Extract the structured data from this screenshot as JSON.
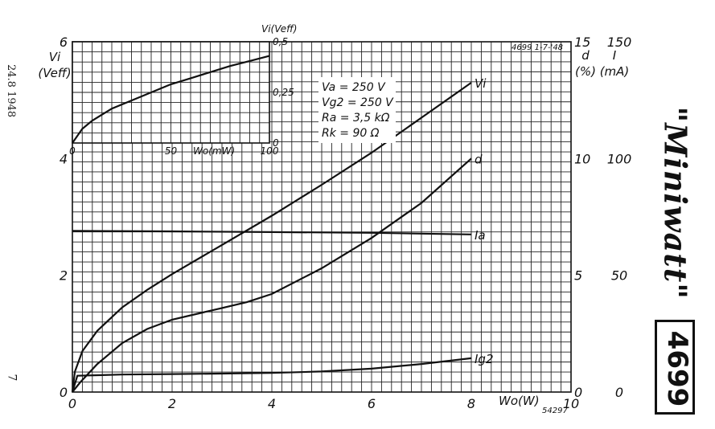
{
  "side_date": "24.8 1948",
  "page_number": "7",
  "brand": "\"Miniwatt\"",
  "tube_number": "4699",
  "sheet_ref": "4699  1-7-'48",
  "drawing_number": "54297",
  "conditions": [
    "Va  = 250 V",
    "Vg2 = 250 V",
    "Ra  = 3,5 kΩ",
    "Rk  = 90 Ω"
  ],
  "chart_data": [
    {
      "type": "line",
      "xlabel": "Wo(W)",
      "xlim": [
        0,
        10
      ],
      "x_ticks": [
        "0",
        "2",
        "4",
        "6",
        "8",
        "10"
      ],
      "left_axis": {
        "label_top": "Vi",
        "label_bottom": "(Veff)",
        "ylim": [
          0,
          6
        ],
        "ticks": [
          "0",
          "2",
          "4",
          "6"
        ]
      },
      "mid_axis": {
        "label_top": "d",
        "label_bottom": "(%)",
        "ylim": [
          0,
          15
        ],
        "ticks": [
          "0",
          "5",
          "10",
          "15"
        ]
      },
      "right_axis": {
        "label_top": "I",
        "label_bottom": "(mA)",
        "ylim": [
          0,
          150
        ],
        "ticks": [
          "0",
          "50",
          "100",
          "150"
        ]
      },
      "series": [
        {
          "name": "Vi",
          "axis": "left",
          "x": [
            0,
            0.05,
            0.2,
            0.5,
            1,
            1.5,
            2,
            3,
            4,
            5,
            6,
            7,
            8
          ],
          "y": [
            0,
            0.35,
            0.7,
            1.05,
            1.45,
            1.75,
            2.02,
            2.52,
            3.02,
            3.55,
            4.1,
            4.7,
            5.3
          ]
        },
        {
          "name": "d",
          "axis": "mid",
          "x": [
            0,
            0.15,
            0.5,
            1,
            1.5,
            2,
            3,
            3.5,
            4,
            5,
            6,
            7,
            8
          ],
          "y": [
            0,
            0.4,
            1.2,
            2.1,
            2.7,
            3.1,
            3.6,
            3.85,
            4.2,
            5.3,
            6.6,
            8.1,
            10
          ]
        },
        {
          "name": "Ia",
          "axis": "right",
          "x": [
            0,
            2,
            4,
            6,
            8
          ],
          "y": [
            69,
            68.8,
            68.5,
            68.2,
            67.5
          ]
        },
        {
          "name": "Ig2",
          "axis": "right",
          "x": [
            0,
            0.1,
            1,
            2,
            3,
            4,
            5,
            6,
            7,
            8
          ],
          "y": [
            0,
            7,
            7.5,
            7.7,
            7.9,
            8.2,
            8.8,
            10,
            12,
            14.5
          ]
        }
      ]
    },
    {
      "type": "line",
      "title": "inset",
      "xlabel": "Wo(mW)",
      "ylabel": "Vi(Veff)",
      "xlim": [
        0,
        100
      ],
      "ylim": [
        0,
        0.5
      ],
      "x_ticks": [
        "0",
        "50",
        "100"
      ],
      "y_ticks": [
        "0",
        "0,25",
        "0,5"
      ],
      "series": [
        {
          "x": [
            0,
            5,
            10,
            20,
            30,
            40,
            50,
            60,
            70,
            80,
            90,
            100
          ],
          "y": [
            0,
            0.07,
            0.11,
            0.17,
            0.21,
            0.25,
            0.29,
            0.32,
            0.35,
            0.38,
            0.405,
            0.43
          ]
        }
      ]
    }
  ]
}
